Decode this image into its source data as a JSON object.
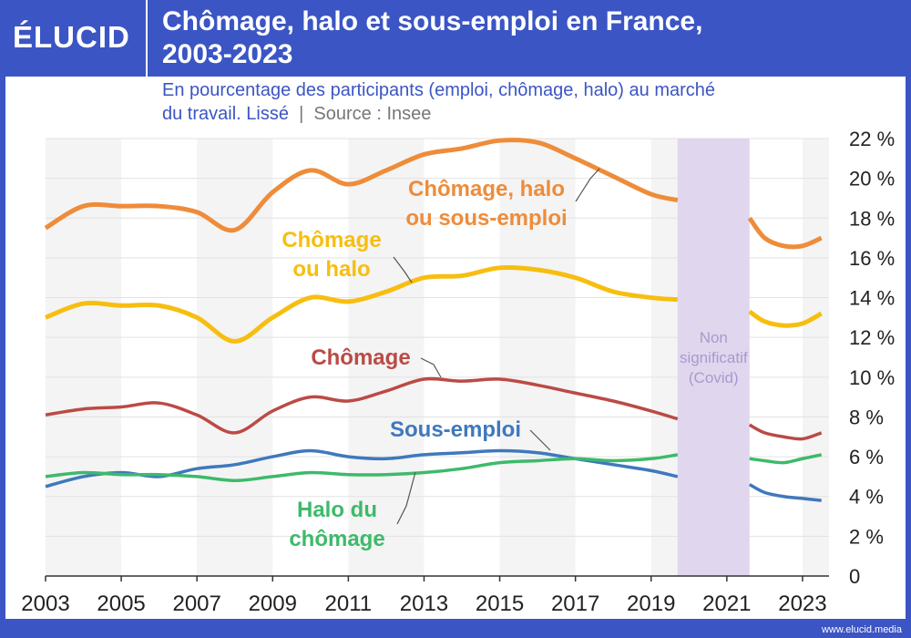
{
  "header": {
    "logo": "ÉLUCID",
    "title_line1": "Chômage, halo et sous-emploi en France,",
    "title_line2": "2003-2023"
  },
  "subtitle": {
    "line1": "En pourcentage des participants (emploi, chômage, halo) au marché",
    "line2": "du travail. Lissé",
    "separator": "|",
    "source": "Source : Insee"
  },
  "footer": {
    "url": "www.elucid.media"
  },
  "colors": {
    "background": "#3b55c4",
    "orange": "#ee8c3a",
    "yellow": "#f7be10",
    "red": "#bb4a45",
    "blue": "#3f78bd",
    "green": "#3dba6a",
    "covid_band": "#e0d6ee",
    "covid_text": "#a99acb"
  },
  "chart_data": {
    "type": "line",
    "xlim": [
      2003,
      2023.7
    ],
    "ylim": [
      0,
      22
    ],
    "x_ticks": [
      "2003",
      "2005",
      "2007",
      "2009",
      "2011",
      "2013",
      "2015",
      "2017",
      "2019",
      "2021",
      "2023"
    ],
    "y_ticks": [
      "0",
      "2 %",
      "4 %",
      "6 %",
      "8 %",
      "10 %",
      "12 %",
      "14 %",
      "16 %",
      "18 %",
      "20 %",
      "22 %"
    ],
    "gap": {
      "from": 2019.7,
      "to": 2021.6,
      "label_lines": [
        "Non",
        "significatif",
        "(Covid)"
      ]
    },
    "series": [
      {
        "name_lines": [
          "Chômage, halo",
          "ou sous-emploi"
        ],
        "color_key": "orange",
        "points": [
          [
            2003,
            17.5
          ],
          [
            2004,
            18.6
          ],
          [
            2005,
            18.6
          ],
          [
            2006,
            18.6
          ],
          [
            2007,
            18.3
          ],
          [
            2008,
            17.4
          ],
          [
            2009,
            19.3
          ],
          [
            2010,
            20.4
          ],
          [
            2011,
            19.7
          ],
          [
            2012,
            20.4
          ],
          [
            2013,
            21.2
          ],
          [
            2014,
            21.5
          ],
          [
            2015,
            21.9
          ],
          [
            2016,
            21.8
          ],
          [
            2017,
            21.0
          ],
          [
            2018,
            20.1
          ],
          [
            2019,
            19.2
          ],
          [
            2019.7,
            18.9
          ],
          [
            2021.6,
            18.0
          ],
          [
            2022,
            17.0
          ],
          [
            2022.5,
            16.6
          ],
          [
            2023,
            16.6
          ],
          [
            2023.5,
            17.0
          ]
        ]
      },
      {
        "name_lines": [
          "Chômage",
          "ou halo"
        ],
        "color_key": "yellow",
        "points": [
          [
            2003,
            13.0
          ],
          [
            2004,
            13.7
          ],
          [
            2005,
            13.6
          ],
          [
            2006,
            13.6
          ],
          [
            2007,
            13.0
          ],
          [
            2008,
            11.8
          ],
          [
            2009,
            13.0
          ],
          [
            2010,
            14.0
          ],
          [
            2011,
            13.8
          ],
          [
            2012,
            14.3
          ],
          [
            2013,
            15.0
          ],
          [
            2014,
            15.1
          ],
          [
            2015,
            15.5
          ],
          [
            2016,
            15.4
          ],
          [
            2017,
            15.0
          ],
          [
            2018,
            14.3
          ],
          [
            2019,
            14.0
          ],
          [
            2019.7,
            13.9
          ],
          [
            2021.6,
            13.3
          ],
          [
            2022,
            12.8
          ],
          [
            2022.5,
            12.6
          ],
          [
            2023,
            12.7
          ],
          [
            2023.5,
            13.2
          ]
        ]
      },
      {
        "name_lines": [
          "Chômage"
        ],
        "color_key": "red",
        "points": [
          [
            2003,
            8.1
          ],
          [
            2004,
            8.4
          ],
          [
            2005,
            8.5
          ],
          [
            2006,
            8.7
          ],
          [
            2007,
            8.1
          ],
          [
            2008,
            7.2
          ],
          [
            2009,
            8.3
          ],
          [
            2010,
            9.0
          ],
          [
            2011,
            8.8
          ],
          [
            2012,
            9.3
          ],
          [
            2013,
            9.9
          ],
          [
            2014,
            9.8
          ],
          [
            2015,
            9.9
          ],
          [
            2016,
            9.6
          ],
          [
            2017,
            9.2
          ],
          [
            2018,
            8.8
          ],
          [
            2019,
            8.3
          ],
          [
            2019.7,
            7.9
          ],
          [
            2021.6,
            7.6
          ],
          [
            2022,
            7.2
          ],
          [
            2022.5,
            7.0
          ],
          [
            2023,
            6.9
          ],
          [
            2023.5,
            7.2
          ]
        ]
      },
      {
        "name_lines": [
          "Sous-emploi"
        ],
        "color_key": "blue",
        "points": [
          [
            2003,
            4.5
          ],
          [
            2004,
            5.0
          ],
          [
            2005,
            5.2
          ],
          [
            2006,
            5.0
          ],
          [
            2007,
            5.4
          ],
          [
            2008,
            5.6
          ],
          [
            2009,
            6.0
          ],
          [
            2010,
            6.3
          ],
          [
            2011,
            6.0
          ],
          [
            2012,
            5.9
          ],
          [
            2013,
            6.1
          ],
          [
            2014,
            6.2
          ],
          [
            2015,
            6.3
          ],
          [
            2016,
            6.2
          ],
          [
            2017,
            5.9
          ],
          [
            2018,
            5.6
          ],
          [
            2019,
            5.3
          ],
          [
            2019.7,
            5.0
          ],
          [
            2021.6,
            4.6
          ],
          [
            2022,
            4.2
          ],
          [
            2022.5,
            4.0
          ],
          [
            2023,
            3.9
          ],
          [
            2023.5,
            3.8
          ]
        ]
      },
      {
        "name_lines": [
          "Halo du",
          "chômage"
        ],
        "color_key": "green",
        "points": [
          [
            2003,
            5.0
          ],
          [
            2004,
            5.2
          ],
          [
            2005,
            5.1
          ],
          [
            2006,
            5.1
          ],
          [
            2007,
            5.0
          ],
          [
            2008,
            4.8
          ],
          [
            2009,
            5.0
          ],
          [
            2010,
            5.2
          ],
          [
            2011,
            5.1
          ],
          [
            2012,
            5.1
          ],
          [
            2013,
            5.2
          ],
          [
            2014,
            5.4
          ],
          [
            2015,
            5.7
          ],
          [
            2016,
            5.8
          ],
          [
            2017,
            5.9
          ],
          [
            2018,
            5.8
          ],
          [
            2019,
            5.9
          ],
          [
            2019.7,
            6.1
          ],
          [
            2021.6,
            5.9
          ],
          [
            2022,
            5.8
          ],
          [
            2022.5,
            5.7
          ],
          [
            2023,
            5.9
          ],
          [
            2023.5,
            6.1
          ]
        ]
      }
    ]
  }
}
